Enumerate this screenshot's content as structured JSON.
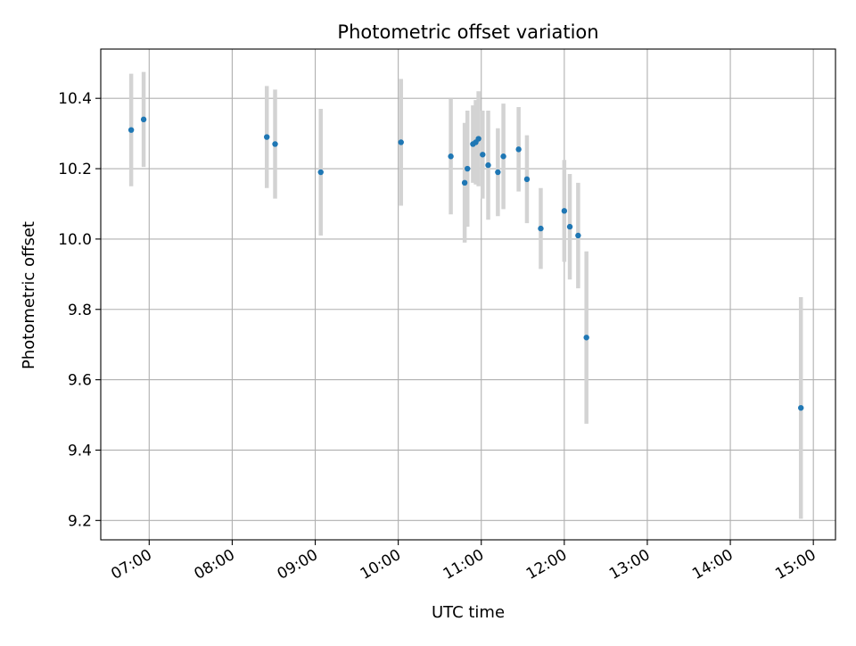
{
  "chart_data": {
    "type": "scatter",
    "title": "Photometric offset variation",
    "xlabel": "UTC time",
    "ylabel": "Photometric offset",
    "grid": true,
    "legend": "none",
    "xlim": [
      "06:25",
      "15:16"
    ],
    "ylim": [
      9.145,
      10.54
    ],
    "x_ticks": [
      "07:00",
      "08:00",
      "09:00",
      "10:00",
      "11:00",
      "12:00",
      "13:00",
      "14:00",
      "15:00"
    ],
    "y_ticks": [
      9.2,
      9.4,
      9.6,
      9.8,
      10.0,
      10.2,
      10.4
    ],
    "colors": {
      "points": "#1f77b4",
      "errorbars": "#d3d3d3",
      "grid": "#b0b0b0"
    },
    "series": [
      {
        "points": [
          {
            "x": "06:47",
            "y": 10.31,
            "err": 0.16
          },
          {
            "x": "06:56",
            "y": 10.34,
            "err": 0.135
          },
          {
            "x": "08:25",
            "y": 10.29,
            "err": 0.145
          },
          {
            "x": "08:31",
            "y": 10.27,
            "err": 0.155
          },
          {
            "x": "09:04",
            "y": 10.19,
            "err": 0.18
          },
          {
            "x": "10:02",
            "y": 10.275,
            "err": 0.18
          },
          {
            "x": "10:38",
            "y": 10.235,
            "err": 0.165
          },
          {
            "x": "10:48",
            "y": 10.16,
            "err": 0.17
          },
          {
            "x": "10:50",
            "y": 10.2,
            "err": 0.165
          },
          {
            "x": "10:54",
            "y": 10.27,
            "err": 0.11
          },
          {
            "x": "10:56",
            "y": 10.275,
            "err": 0.12
          },
          {
            "x": "10:58",
            "y": 10.285,
            "err": 0.135
          },
          {
            "x": "11:01",
            "y": 10.24,
            "err": 0.125
          },
          {
            "x": "11:05",
            "y": 10.21,
            "err": 0.155
          },
          {
            "x": "11:12",
            "y": 10.19,
            "err": 0.125
          },
          {
            "x": "11:16",
            "y": 10.235,
            "err": 0.15
          },
          {
            "x": "11:27",
            "y": 10.255,
            "err": 0.12
          },
          {
            "x": "11:33",
            "y": 10.17,
            "err": 0.125
          },
          {
            "x": "11:43",
            "y": 10.03,
            "err": 0.115
          },
          {
            "x": "12:00",
            "y": 10.08,
            "err": 0.145
          },
          {
            "x": "12:04",
            "y": 10.035,
            "err": 0.15
          },
          {
            "x": "12:10",
            "y": 10.01,
            "err": 0.15
          },
          {
            "x": "12:16",
            "y": 9.72,
            "err": 0.245
          },
          {
            "x": "14:51",
            "y": 9.52,
            "err": 0.315
          }
        ]
      }
    ]
  }
}
